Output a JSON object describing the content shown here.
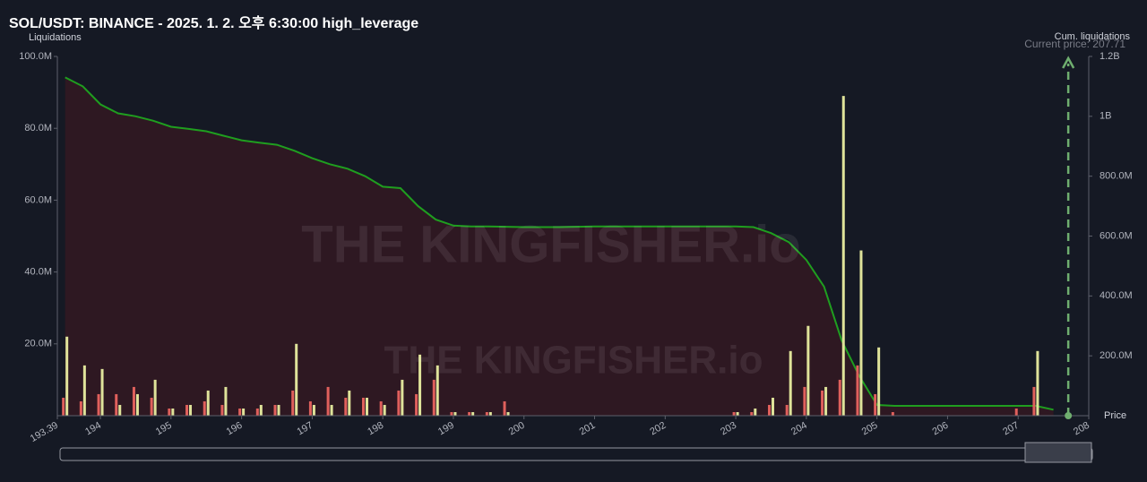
{
  "chart_data": {
    "type": "bar",
    "title": "SOL/USDT: BINANCE - 2025. 1. 2. 오후 6:30:00 high_leverage",
    "y_label": "Liquidations",
    "y2_label": "Cum. liquidations",
    "x_label": "Price",
    "watermark": "THE KINGFISHER.io",
    "current_price": {
      "value": 207.71,
      "label": "Current price: 207.71",
      "color": "#6fae6f"
    },
    "xlim": [
      193.39,
      208
    ],
    "xticks": [
      193.39,
      194,
      195,
      196,
      197,
      198,
      199,
      200,
      201,
      202,
      203,
      204,
      205,
      206,
      207,
      208
    ],
    "ylim": [
      0,
      100000000
    ],
    "yticks": [
      {
        "value": 20000000,
        "label": "20.0M"
      },
      {
        "value": 40000000,
        "label": "40.0M"
      },
      {
        "value": 60000000,
        "label": "60.0M"
      },
      {
        "value": 80000000,
        "label": "80.0M"
      },
      {
        "value": 100000000,
        "label": "100.0M"
      }
    ],
    "y2lim": [
      0,
      1200000000
    ],
    "y2ticks": [
      {
        "value": 200000000,
        "label": "200.0M"
      },
      {
        "value": 400000000,
        "label": "400.0M"
      },
      {
        "value": 600000000,
        "label": "600.0M"
      },
      {
        "value": 800000000,
        "label": "800.0M"
      },
      {
        "value": 1000000000,
        "label": "1B"
      },
      {
        "value": 1200000000,
        "label": "1.2B"
      }
    ],
    "x": [
      193.5,
      193.75,
      194,
      194.25,
      194.5,
      194.75,
      195,
      195.25,
      195.5,
      195.75,
      196,
      196.25,
      196.5,
      196.75,
      197,
      197.25,
      197.5,
      197.75,
      198,
      198.25,
      198.5,
      198.75,
      199,
      199.25,
      199.5,
      199.75,
      200,
      200.25,
      200.5,
      200.75,
      201,
      201.25,
      201.5,
      201.75,
      202,
      202.25,
      202.5,
      202.75,
      203,
      203.25,
      203.5,
      203.75,
      204,
      204.25,
      204.5,
      204.75,
      205,
      205.25,
      205.5,
      205.75,
      206,
      206.25,
      206.5,
      206.75,
      207,
      207.25,
      207.5
    ],
    "series": [
      {
        "color": "#e0605c",
        "values": [
          5000000,
          4000000,
          6000000,
          6000000,
          8000000,
          5000000,
          2000000,
          3000000,
          4000000,
          3000000,
          2000000,
          2000000,
          3000000,
          7000000,
          4000000,
          8000000,
          5000000,
          5000000,
          4000000,
          7000000,
          6000000,
          10000000,
          1000000,
          1000000,
          1000000,
          4000000,
          0,
          0,
          0,
          0,
          0,
          0,
          0,
          0,
          0,
          0,
          0,
          0,
          1000000,
          1000000,
          3000000,
          3000000,
          8000000,
          7000000,
          10000000,
          14000000,
          6000000,
          1000000,
          0,
          0,
          0,
          0,
          0,
          0,
          2000000,
          8000000,
          0
        ]
      },
      {
        "color": "#dfe39a",
        "values": [
          22000000,
          14000000,
          13000000,
          3000000,
          6000000,
          10000000,
          2000000,
          3000000,
          7000000,
          8000000,
          2000000,
          3000000,
          3000000,
          20000000,
          3000000,
          3000000,
          7000000,
          5000000,
          3000000,
          10000000,
          17000000,
          14000000,
          1000000,
          1000000,
          1000000,
          1000000,
          0,
          0,
          0,
          0,
          0,
          0,
          0,
          0,
          0,
          0,
          0,
          0,
          1000000,
          2000000,
          5000000,
          18000000,
          25000000,
          8000000,
          89000000,
          46000000,
          19000000,
          0,
          0,
          0,
          0,
          0,
          0,
          0,
          0,
          18000000,
          0
        ]
      },
      {
        "type": "line",
        "axis": "y2",
        "color": "#1f9e1f",
        "values": [
          1130000000,
          1100000000,
          1040000000,
          1010000000,
          1000000000,
          985000000,
          965000000,
          958000000,
          950000000,
          935000000,
          920000000,
          912000000,
          905000000,
          885000000,
          860000000,
          840000000,
          825000000,
          800000000,
          765000000,
          760000000,
          700000000,
          655000000,
          635000000,
          632000000,
          632000000,
          631000000,
          630000000,
          630000000,
          630000000,
          631000000,
          632000000,
          632000000,
          632000000,
          632000000,
          632000000,
          632000000,
          632000000,
          632000000,
          632000000,
          630000000,
          610000000,
          580000000,
          520000000,
          431000000,
          251000000,
          132000000,
          36000000,
          33000000,
          33000000,
          33000000,
          33000000,
          33000000,
          33000000,
          33000000,
          33000000,
          33000000,
          20000000
        ]
      }
    ]
  }
}
